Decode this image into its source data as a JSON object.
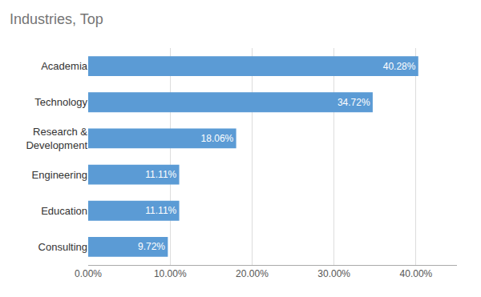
{
  "chart_data": {
    "type": "bar",
    "orientation": "horizontal",
    "title": "Industries, Top",
    "categories": [
      "Consulting",
      "Education",
      "Engineering",
      "Research &\nDevelopment",
      "Technology",
      "Academia"
    ],
    "values": [
      9.72,
      11.11,
      11.11,
      18.06,
      34.72,
      40.28
    ],
    "value_labels": [
      "9.72%",
      "11.11%",
      "11.11%",
      "18.06%",
      "34.72%",
      "40.28%"
    ],
    "data_labels": true,
    "color": "#5B9BD5",
    "xlim": [
      0,
      45
    ],
    "xticks": [
      {
        "value": 0,
        "label": "0.00%"
      },
      {
        "value": 10,
        "label": "10.00%"
      },
      {
        "value": 20,
        "label": "20.00%"
      },
      {
        "value": 30,
        "label": "30.00%"
      },
      {
        "value": 40,
        "label": "40.00%"
      }
    ],
    "grid": true
  }
}
